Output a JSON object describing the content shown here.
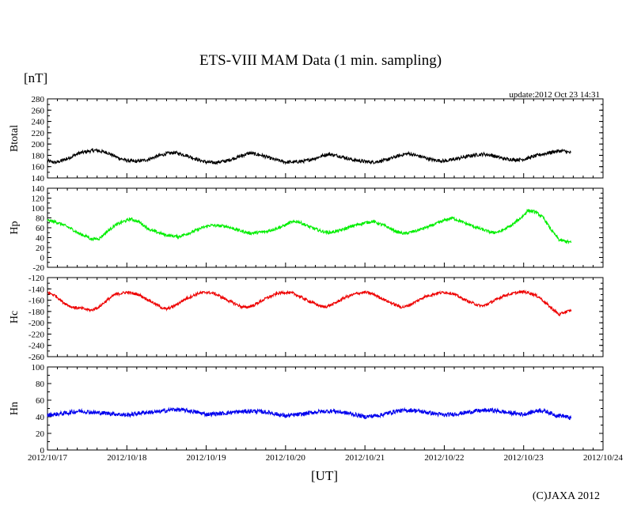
{
  "header": {
    "title": "ETS-VIII MAM Data (1 min. sampling)",
    "unit": "[nT]",
    "update": "update:2012 Oct 23 14:31"
  },
  "footer": {
    "xunit": "[UT]",
    "credit": "(C)JAXA 2012"
  },
  "chart_data": {
    "type": "line",
    "title": "ETS-VIII MAM Data (1 min. sampling)",
    "xlabel": "[UT]",
    "ylabel": "[nT]",
    "x_range": [
      0,
      7
    ],
    "data_end": 6.6,
    "x_ticks": [
      "2012/10/17",
      "2012/10/18",
      "2012/10/19",
      "2012/10/20",
      "2012/10/21",
      "2012/10/22",
      "2012/10/23",
      "2012/10/24"
    ],
    "panels": [
      {
        "name": "Btotal",
        "color": "#000000",
        "ylim": [
          140,
          280
        ],
        "yticks": [
          140,
          160,
          180,
          200,
          220,
          240,
          260,
          280
        ],
        "noise": 3,
        "points": [
          [
            0,
            170
          ],
          [
            0.1,
            167
          ],
          [
            0.25,
            174
          ],
          [
            0.4,
            184
          ],
          [
            0.55,
            188
          ],
          [
            0.6,
            189
          ],
          [
            0.75,
            185
          ],
          [
            0.9,
            175
          ],
          [
            1.0,
            171
          ],
          [
            1.1,
            169
          ],
          [
            1.25,
            172
          ],
          [
            1.4,
            179
          ],
          [
            1.5,
            183
          ],
          [
            1.6,
            185
          ],
          [
            1.75,
            180
          ],
          [
            1.9,
            172
          ],
          [
            2.0,
            168
          ],
          [
            2.1,
            167
          ],
          [
            2.25,
            170
          ],
          [
            2.4,
            177
          ],
          [
            2.5,
            182
          ],
          [
            2.55,
            184
          ],
          [
            2.7,
            180
          ],
          [
            2.85,
            173
          ],
          [
            3.0,
            168
          ],
          [
            3.1,
            168
          ],
          [
            3.25,
            170
          ],
          [
            3.4,
            176
          ],
          [
            3.5,
            181
          ],
          [
            3.55,
            182
          ],
          [
            3.7,
            178
          ],
          [
            3.85,
            172
          ],
          [
            4.0,
            169
          ],
          [
            4.1,
            168
          ],
          [
            4.25,
            171
          ],
          [
            4.4,
            178
          ],
          [
            4.5,
            182
          ],
          [
            4.55,
            183
          ],
          [
            4.7,
            178
          ],
          [
            4.85,
            172
          ],
          [
            5.0,
            170
          ],
          [
            5.1,
            172
          ],
          [
            5.25,
            177
          ],
          [
            5.4,
            181
          ],
          [
            5.5,
            182
          ],
          [
            5.6,
            180
          ],
          [
            5.75,
            174
          ],
          [
            5.9,
            172
          ],
          [
            6.0,
            173
          ],
          [
            6.1,
            177
          ],
          [
            6.2,
            181
          ],
          [
            6.3,
            184
          ],
          [
            6.4,
            187
          ],
          [
            6.5,
            188
          ],
          [
            6.6,
            184
          ]
        ]
      },
      {
        "name": "Hp",
        "color": "#00ee00",
        "ylim": [
          -20,
          140
        ],
        "yticks": [
          -20,
          0,
          20,
          40,
          60,
          80,
          100,
          120,
          140
        ],
        "noise": 3,
        "points": [
          [
            0,
            75
          ],
          [
            0.1,
            72
          ],
          [
            0.2,
            66
          ],
          [
            0.3,
            58
          ],
          [
            0.4,
            48
          ],
          [
            0.5,
            42
          ],
          [
            0.55,
            37
          ],
          [
            0.65,
            38
          ],
          [
            0.75,
            52
          ],
          [
            0.85,
            65
          ],
          [
            0.95,
            72
          ],
          [
            1.05,
            78
          ],
          [
            1.15,
            72
          ],
          [
            1.3,
            55
          ],
          [
            1.5,
            45
          ],
          [
            1.65,
            42
          ],
          [
            1.8,
            50
          ],
          [
            1.95,
            60
          ],
          [
            2.05,
            65
          ],
          [
            2.25,
            63
          ],
          [
            2.45,
            53
          ],
          [
            2.55,
            49
          ],
          [
            2.75,
            52
          ],
          [
            2.95,
            62
          ],
          [
            3.05,
            70
          ],
          [
            3.15,
            73
          ],
          [
            3.3,
            62
          ],
          [
            3.45,
            53
          ],
          [
            3.55,
            50
          ],
          [
            3.7,
            55
          ],
          [
            3.85,
            64
          ],
          [
            4.0,
            70
          ],
          [
            4.1,
            73
          ],
          [
            4.25,
            64
          ],
          [
            4.4,
            52
          ],
          [
            4.5,
            48
          ],
          [
            4.65,
            54
          ],
          [
            4.85,
            65
          ],
          [
            5.0,
            75
          ],
          [
            5.1,
            80
          ],
          [
            5.25,
            70
          ],
          [
            5.45,
            58
          ],
          [
            5.6,
            50
          ],
          [
            5.7,
            52
          ],
          [
            5.85,
            65
          ],
          [
            6.0,
            85
          ],
          [
            6.05,
            95
          ],
          [
            6.15,
            92
          ],
          [
            6.25,
            80
          ],
          [
            6.35,
            55
          ],
          [
            6.45,
            35
          ],
          [
            6.55,
            32
          ],
          [
            6.6,
            30
          ]
        ]
      },
      {
        "name": "Hc",
        "color": "#ee0000",
        "ylim": [
          -260,
          -120
        ],
        "yticks": [
          -260,
          -240,
          -220,
          -200,
          -180,
          -160,
          -140,
          -120
        ],
        "noise": 2.5,
        "points": [
          [
            0,
            -146
          ],
          [
            0.1,
            -152
          ],
          [
            0.2,
            -164
          ],
          [
            0.3,
            -172
          ],
          [
            0.45,
            -175
          ],
          [
            0.55,
            -178
          ],
          [
            0.65,
            -172
          ],
          [
            0.75,
            -160
          ],
          [
            0.85,
            -150
          ],
          [
            1.0,
            -146
          ],
          [
            1.15,
            -150
          ],
          [
            1.3,
            -162
          ],
          [
            1.45,
            -174
          ],
          [
            1.5,
            -176
          ],
          [
            1.6,
            -170
          ],
          [
            1.75,
            -157
          ],
          [
            1.9,
            -148
          ],
          [
            2.0,
            -146
          ],
          [
            2.1,
            -148
          ],
          [
            2.3,
            -162
          ],
          [
            2.45,
            -172
          ],
          [
            2.5,
            -173
          ],
          [
            2.6,
            -169
          ],
          [
            2.75,
            -157
          ],
          [
            2.9,
            -148
          ],
          [
            3.0,
            -146
          ],
          [
            3.1,
            -148
          ],
          [
            3.3,
            -162
          ],
          [
            3.45,
            -171
          ],
          [
            3.5,
            -172
          ],
          [
            3.6,
            -167
          ],
          [
            3.75,
            -155
          ],
          [
            3.9,
            -148
          ],
          [
            4.0,
            -146
          ],
          [
            4.1,
            -149
          ],
          [
            4.3,
            -163
          ],
          [
            4.45,
            -172
          ],
          [
            4.5,
            -172
          ],
          [
            4.6,
            -166
          ],
          [
            4.75,
            -154
          ],
          [
            4.9,
            -148
          ],
          [
            5.0,
            -146
          ],
          [
            5.1,
            -148
          ],
          [
            5.3,
            -162
          ],
          [
            5.45,
            -170
          ],
          [
            5.5,
            -170
          ],
          [
            5.6,
            -163
          ],
          [
            5.75,
            -152
          ],
          [
            5.9,
            -147
          ],
          [
            6.0,
            -145
          ],
          [
            6.1,
            -148
          ],
          [
            6.2,
            -155
          ],
          [
            6.3,
            -168
          ],
          [
            6.4,
            -180
          ],
          [
            6.45,
            -186
          ],
          [
            6.5,
            -182
          ],
          [
            6.6,
            -178
          ]
        ]
      },
      {
        "name": "Hn",
        "color": "#0000ee",
        "ylim": [
          0,
          100
        ],
        "yticks": [
          0,
          20,
          40,
          60,
          80,
          100
        ],
        "noise": 2.5,
        "points": [
          [
            0,
            42
          ],
          [
            0.2,
            44
          ],
          [
            0.4,
            47
          ],
          [
            0.6,
            45
          ],
          [
            0.8,
            44
          ],
          [
            1.0,
            42
          ],
          [
            1.2,
            45
          ],
          [
            1.4,
            46
          ],
          [
            1.6,
            49
          ],
          [
            1.8,
            47
          ],
          [
            2.0,
            43
          ],
          [
            2.2,
            44
          ],
          [
            2.4,
            46
          ],
          [
            2.6,
            47
          ],
          [
            2.8,
            45
          ],
          [
            3.0,
            41
          ],
          [
            3.2,
            43
          ],
          [
            3.4,
            46
          ],
          [
            3.6,
            47
          ],
          [
            3.8,
            44
          ],
          [
            4.0,
            40
          ],
          [
            4.2,
            42
          ],
          [
            4.4,
            47
          ],
          [
            4.6,
            48
          ],
          [
            4.8,
            45
          ],
          [
            5.0,
            42
          ],
          [
            5.2,
            44
          ],
          [
            5.4,
            47
          ],
          [
            5.6,
            48
          ],
          [
            5.8,
            45
          ],
          [
            6.0,
            43
          ],
          [
            6.2,
            48
          ],
          [
            6.3,
            46
          ],
          [
            6.4,
            42
          ],
          [
            6.5,
            41
          ],
          [
            6.6,
            38
          ]
        ]
      }
    ]
  }
}
